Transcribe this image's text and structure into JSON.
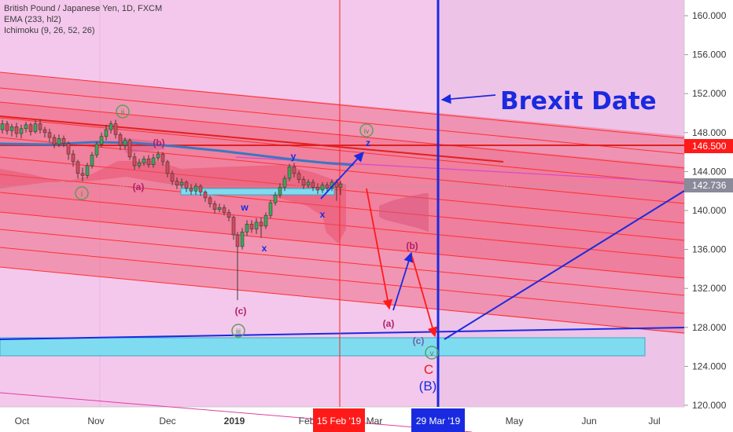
{
  "legend": {
    "title": "British Pound / Japanese Yen, 1D, FXCM",
    "ema": "EMA (233, hl2)",
    "ichimoku": "Ichimoku (9, 26, 52, 26)"
  },
  "colors": {
    "background": "#f4c8ec",
    "channel": "#f07088",
    "channel_line": "#ff2a2a",
    "ema": "#3a78c0",
    "zone": "#7fdcf0",
    "blue": "#1a2ae0",
    "price_tag_red": "#ff1a1a",
    "price_tag_gray": "#8a8a9a"
  },
  "chart_data": {
    "type": "candlestick",
    "y_axis": {
      "ylim": [
        120,
        162
      ],
      "ticks": [
        "160.000",
        "156.000",
        "152.000",
        "148.000",
        "144.000",
        "140.000",
        "136.000",
        "132.000",
        "128.000",
        "124.000",
        "120.000"
      ]
    },
    "x_axis": {
      "ticks": [
        "Oct",
        "Nov",
        "Dec",
        "2019",
        "Feb",
        "Mar",
        "May",
        "Jun",
        "Jul"
      ],
      "range_months": [
        "2018-09-18",
        "2019-07-15"
      ]
    },
    "price_tags": [
      {
        "value": "146.500",
        "color": "red"
      },
      {
        "value": "142.736",
        "color": "gray"
      }
    ],
    "time_markers": [
      {
        "label": "15 Feb '19",
        "date": "2019-02-15",
        "color": "red"
      },
      {
        "label": "29 Mar '19",
        "date": "2019-03-29",
        "color": "blue"
      }
    ],
    "annotations": {
      "headline": "Brexit Date",
      "circled": [
        "ii",
        "i",
        "iii",
        "iv",
        "v"
      ],
      "labels": [
        "(a)",
        "(b)",
        "(c)",
        "w",
        "x",
        "y",
        "z",
        "(a)",
        "(b)",
        "(c)",
        "C",
        "(B)"
      ]
    },
    "close_series": [
      [
        "2018-09-18",
        148.3
      ],
      [
        "2018-09-25",
        148.6
      ],
      [
        "2018-10-01",
        148.2
      ],
      [
        "2018-10-08",
        147.6
      ],
      [
        "2018-10-15",
        146.7
      ],
      [
        "2018-10-22",
        145.2
      ],
      [
        "2018-10-26",
        143.5
      ],
      [
        "2018-11-01",
        145.0
      ],
      [
        "2018-11-06",
        147.8
      ],
      [
        "2018-11-10",
        148.6
      ],
      [
        "2018-11-15",
        146.0
      ],
      [
        "2018-11-21",
        144.8
      ],
      [
        "2018-11-27",
        144.2
      ],
      [
        "2018-12-04",
        145.5
      ],
      [
        "2018-12-10",
        142.5
      ],
      [
        "2018-12-17",
        142.3
      ],
      [
        "2018-12-24",
        141.0
      ],
      [
        "2018-12-28",
        139.5
      ],
      [
        "2019-01-02",
        137.0
      ],
      [
        "2019-01-03",
        136.5
      ],
      [
        "2019-01-08",
        138.5
      ],
      [
        "2019-01-14",
        139.8
      ],
      [
        "2019-01-20",
        140.5
      ],
      [
        "2019-01-25",
        142.8
      ],
      [
        "2019-01-29",
        144.5
      ],
      [
        "2019-02-04",
        143.8
      ],
      [
        "2019-02-08",
        142.9
      ],
      [
        "2019-02-13",
        142.5
      ],
      [
        "2019-02-15",
        142.7
      ]
    ],
    "candles": [
      {
        "x": 3,
        "o": 148.3,
        "c": 148.9,
        "h": 149.3,
        "l": 147.9
      },
      {
        "x": 9,
        "o": 148.9,
        "c": 148.2,
        "h": 149.2,
        "l": 147.8
      },
      {
        "x": 15,
        "o": 148.2,
        "c": 148.6,
        "h": 148.9,
        "l": 147.6
      },
      {
        "x": 21,
        "o": 148.6,
        "c": 147.9,
        "h": 149.0,
        "l": 147.5
      },
      {
        "x": 27,
        "o": 147.9,
        "c": 148.4,
        "h": 148.8,
        "l": 147.4
      },
      {
        "x": 33,
        "o": 148.4,
        "c": 148.8,
        "h": 149.1,
        "l": 148.0
      },
      {
        "x": 39,
        "o": 148.8,
        "c": 148.1,
        "h": 149.0,
        "l": 147.7
      },
      {
        "x": 45,
        "o": 148.1,
        "c": 148.9,
        "h": 149.3,
        "l": 147.9
      },
      {
        "x": 51,
        "o": 148.9,
        "c": 148.3,
        "h": 149.4,
        "l": 147.9
      },
      {
        "x": 57,
        "o": 148.3,
        "c": 148.0,
        "h": 148.6,
        "l": 147.5
      },
      {
        "x": 63,
        "o": 148.0,
        "c": 147.5,
        "h": 148.4,
        "l": 147.0
      },
      {
        "x": 69,
        "o": 147.5,
        "c": 146.8,
        "h": 147.8,
        "l": 146.4
      },
      {
        "x": 75,
        "o": 146.8,
        "c": 147.4,
        "h": 147.8,
        "l": 146.5
      },
      {
        "x": 81,
        "o": 147.4,
        "c": 146.9,
        "h": 147.7,
        "l": 146.5
      },
      {
        "x": 87,
        "o": 146.9,
        "c": 145.8,
        "h": 147.1,
        "l": 145.2
      },
      {
        "x": 93,
        "o": 145.8,
        "c": 145.0,
        "h": 146.2,
        "l": 144.5
      },
      {
        "x": 99,
        "o": 145.0,
        "c": 143.8,
        "h": 145.2,
        "l": 143.3
      },
      {
        "x": 105,
        "o": 143.8,
        "c": 143.6,
        "h": 144.4,
        "l": 143.0
      },
      {
        "x": 111,
        "o": 143.6,
        "c": 144.6,
        "h": 144.9,
        "l": 143.3
      },
      {
        "x": 117,
        "o": 144.6,
        "c": 145.7,
        "h": 146.0,
        "l": 144.3
      },
      {
        "x": 123,
        "o": 145.7,
        "c": 146.8,
        "h": 147.1,
        "l": 145.4
      },
      {
        "x": 129,
        "o": 146.8,
        "c": 147.6,
        "h": 148.0,
        "l": 146.5
      },
      {
        "x": 135,
        "o": 147.6,
        "c": 148.3,
        "h": 148.8,
        "l": 147.2
      },
      {
        "x": 141,
        "o": 148.3,
        "c": 148.9,
        "h": 149.2,
        "l": 147.9
      },
      {
        "x": 147,
        "o": 148.9,
        "c": 147.8,
        "h": 149.3,
        "l": 147.4
      },
      {
        "x": 153,
        "o": 147.8,
        "c": 146.7,
        "h": 148.0,
        "l": 146.2
      },
      {
        "x": 159,
        "o": 146.7,
        "c": 147.2,
        "h": 147.5,
        "l": 146.3
      },
      {
        "x": 165,
        "o": 147.2,
        "c": 145.5,
        "h": 147.4,
        "l": 145.2
      },
      {
        "x": 171,
        "o": 145.5,
        "c": 144.6,
        "h": 145.9,
        "l": 144.2
      },
      {
        "x": 177,
        "o": 144.6,
        "c": 144.9,
        "h": 145.3,
        "l": 144.3
      },
      {
        "x": 183,
        "o": 144.9,
        "c": 145.3,
        "h": 145.6,
        "l": 144.6
      },
      {
        "x": 189,
        "o": 145.3,
        "c": 144.7,
        "h": 145.7,
        "l": 144.4
      },
      {
        "x": 195,
        "o": 144.7,
        "c": 145.4,
        "h": 145.8,
        "l": 144.4
      },
      {
        "x": 201,
        "o": 145.4,
        "c": 145.8,
        "h": 146.1,
        "l": 145.1
      },
      {
        "x": 207,
        "o": 145.8,
        "c": 145.0,
        "h": 146.0,
        "l": 144.6
      },
      {
        "x": 213,
        "o": 145.0,
        "c": 143.8,
        "h": 145.2,
        "l": 143.4
      },
      {
        "x": 219,
        "o": 143.8,
        "c": 143.0,
        "h": 144.1,
        "l": 142.6
      },
      {
        "x": 225,
        "o": 143.0,
        "c": 142.6,
        "h": 143.4,
        "l": 142.2
      },
      {
        "x": 231,
        "o": 142.6,
        "c": 142.9,
        "h": 143.3,
        "l": 142.3
      },
      {
        "x": 237,
        "o": 142.9,
        "c": 142.3,
        "h": 143.1,
        "l": 141.9
      },
      {
        "x": 243,
        "o": 142.3,
        "c": 142.0,
        "h": 142.7,
        "l": 141.6
      },
      {
        "x": 249,
        "o": 142.0,
        "c": 142.5,
        "h": 142.8,
        "l": 141.6
      },
      {
        "x": 255,
        "o": 142.5,
        "c": 141.9,
        "h": 142.7,
        "l": 141.5
      },
      {
        "x": 261,
        "o": 141.9,
        "c": 141.3,
        "h": 142.1,
        "l": 140.9
      },
      {
        "x": 267,
        "o": 141.3,
        "c": 140.7,
        "h": 141.5,
        "l": 140.3
      },
      {
        "x": 273,
        "o": 140.7,
        "c": 140.1,
        "h": 141.0,
        "l": 139.7
      },
      {
        "x": 279,
        "o": 140.1,
        "c": 140.3,
        "h": 140.7,
        "l": 139.8
      },
      {
        "x": 285,
        "o": 140.3,
        "c": 139.8,
        "h": 140.6,
        "l": 139.5
      },
      {
        "x": 291,
        "o": 139.8,
        "c": 139.3,
        "h": 140.1,
        "l": 138.9
      },
      {
        "x": 297,
        "o": 139.3,
        "c": 137.5,
        "h": 139.5,
        "l": 137.0
      },
      {
        "x": 302,
        "o": 137.5,
        "c": 136.3,
        "h": 137.8,
        "l": 130.8
      },
      {
        "x": 308,
        "o": 136.3,
        "c": 137.8,
        "h": 138.2,
        "l": 136.0
      },
      {
        "x": 314,
        "o": 137.8,
        "c": 138.6,
        "h": 139.0,
        "l": 137.4
      },
      {
        "x": 320,
        "o": 138.6,
        "c": 138.1,
        "h": 139.0,
        "l": 137.7
      },
      {
        "x": 326,
        "o": 138.1,
        "c": 138.8,
        "h": 139.2,
        "l": 137.6
      },
      {
        "x": 332,
        "o": 138.8,
        "c": 138.4,
        "h": 139.3,
        "l": 137.2
      },
      {
        "x": 338,
        "o": 138.4,
        "c": 139.5,
        "h": 139.8,
        "l": 138.1
      },
      {
        "x": 344,
        "o": 139.5,
        "c": 140.8,
        "h": 141.1,
        "l": 139.2
      },
      {
        "x": 350,
        "o": 140.8,
        "c": 141.6,
        "h": 141.9,
        "l": 140.5
      },
      {
        "x": 356,
        "o": 141.6,
        "c": 142.4,
        "h": 142.8,
        "l": 141.3
      },
      {
        "x": 362,
        "o": 142.4,
        "c": 143.3,
        "h": 143.6,
        "l": 142.0
      },
      {
        "x": 368,
        "o": 143.3,
        "c": 144.5,
        "h": 144.8,
        "l": 143.0
      },
      {
        "x": 374,
        "o": 144.5,
        "c": 143.8,
        "h": 144.9,
        "l": 143.4
      },
      {
        "x": 380,
        "o": 143.8,
        "c": 143.2,
        "h": 144.1,
        "l": 142.8
      },
      {
        "x": 386,
        "o": 143.2,
        "c": 142.6,
        "h": 143.5,
        "l": 142.2
      },
      {
        "x": 392,
        "o": 142.6,
        "c": 142.9,
        "h": 143.2,
        "l": 142.3
      },
      {
        "x": 398,
        "o": 142.9,
        "c": 142.4,
        "h": 143.2,
        "l": 142.0
      },
      {
        "x": 404,
        "o": 142.4,
        "c": 142.1,
        "h": 142.8,
        "l": 141.7
      },
      {
        "x": 410,
        "o": 142.1,
        "c": 142.6,
        "h": 142.9,
        "l": 141.8
      },
      {
        "x": 416,
        "o": 142.6,
        "c": 142.3,
        "h": 142.9,
        "l": 141.9
      },
      {
        "x": 422,
        "o": 142.3,
        "c": 142.9,
        "h": 143.2,
        "l": 142.0
      },
      {
        "x": 428,
        "o": 142.9,
        "c": 142.4,
        "h": 143.2,
        "l": 141.0
      },
      {
        "x": 433,
        "o": 142.4,
        "c": 142.7,
        "h": 143.0,
        "l": 141.6
      }
    ]
  }
}
